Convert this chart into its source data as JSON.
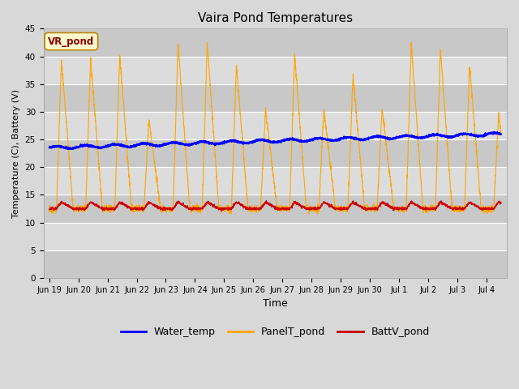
{
  "title": "Vaira Pond Temperatures",
  "xlabel": "Time",
  "ylabel": "Temperature (C), Battery (V)",
  "ylim": [
    0,
    45
  ],
  "yticks": [
    0,
    5,
    10,
    15,
    20,
    25,
    30,
    35,
    40,
    45
  ],
  "annotation_text": "VR_pond",
  "annotation_color": "#8B0000",
  "annotation_bg": "#FFFACD",
  "annotation_edge": "#B8860B",
  "water_temp_color": "#0000FF",
  "panel_temp_color": "#FFA500",
  "batt_color": "#CC0000",
  "legend_labels": [
    "Water_temp",
    "PanelT_pond",
    "BattV_pond"
  ],
  "fig_bg_color": "#D8D8D8",
  "plot_bg_color": "#E8E8E8",
  "band_light": "#DCDCDC",
  "band_dark": "#C8C8C8",
  "grid_color": "#FFFFFF",
  "tick_labels": [
    "Jun 19",
    "Jun 20",
    "Jun 21",
    "Jun 22",
    "Jun 23",
    "Jun 24",
    "Jun 25",
    "Jun 26",
    "Jun 27",
    "Jun 28",
    "Jun 29",
    "Jun 30",
    "Jul 1",
    "Jul 2",
    "Jul 3",
    "Jul 4"
  ],
  "num_points": 3000,
  "seed": 42
}
